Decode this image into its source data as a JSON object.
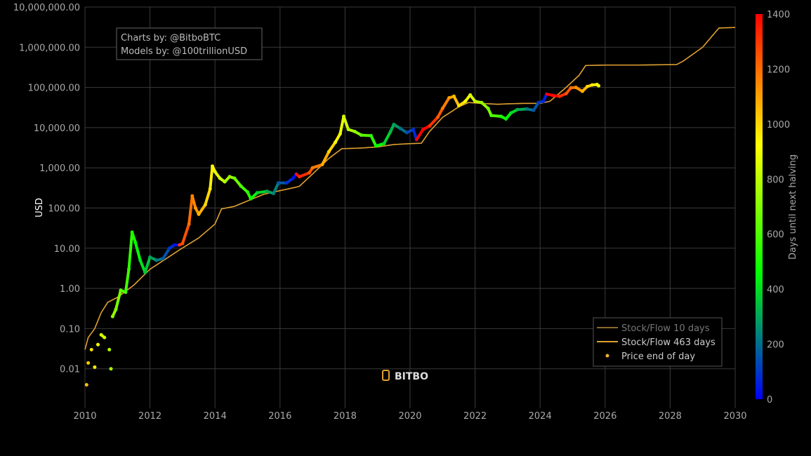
{
  "annotation": {
    "line1": "Charts by: @BitboBTC",
    "line2": "Models by: @100trillionUSD"
  },
  "watermark": "BITBO",
  "colors": {
    "sf10": "#8a6a2a",
    "sf463": "#e0a030",
    "price_legend": "#f0b030",
    "grid": "#3a3a3a",
    "text": "#aaaaaa"
  },
  "chart_data": {
    "type": "scatter",
    "title": "",
    "xlabel": "",
    "ylabel": "USD",
    "x_scale": "linear (year)",
    "y_scale": "log",
    "xlim": [
      2010,
      2030
    ],
    "ylim": [
      0.001,
      10000000
    ],
    "grid": true,
    "legend_placement": "bottom-right",
    "x_ticks": [
      "2010",
      "2012",
      "2014",
      "2016",
      "2018",
      "2020",
      "2022",
      "2024",
      "2026",
      "2028",
      "2030"
    ],
    "y_ticks": [
      "10,000,000.00",
      "1,000,000.00",
      "100,000.00",
      "10,000.00",
      "1,000.00",
      "100.00",
      "10.00",
      "1.00",
      "0.10",
      "0.01"
    ],
    "colorbar": {
      "label": "Days until next halving",
      "range": [
        0,
        1400
      ],
      "ticks": [
        "0",
        "200",
        "400",
        "600",
        "800",
        "1000",
        "1200",
        "1400"
      ],
      "colorscale": [
        "#0000ff",
        "#00ff00",
        "#ffff00",
        "#ff0000"
      ]
    },
    "legend": [
      "Stock/Flow 10 days",
      "Stock/Flow 463 days",
      "Price end of day"
    ],
    "series": [
      {
        "name": "Stock/Flow 10 days",
        "type": "line",
        "points": [
          [
            2010.0,
            0.03
          ],
          [
            2010.1,
            0.06
          ],
          [
            2010.3,
            0.1
          ],
          [
            2010.5,
            0.25
          ],
          [
            2010.7,
            0.45
          ],
          [
            2011.0,
            0.6
          ],
          [
            2011.5,
            1.2
          ],
          [
            2012.0,
            3
          ],
          [
            2012.5,
            5.5
          ],
          [
            2012.9,
            9
          ],
          [
            2013.5,
            18
          ],
          [
            2014.0,
            40
          ],
          [
            2014.2,
            95
          ],
          [
            2014.6,
            110
          ],
          [
            2015.0,
            150
          ],
          [
            2015.5,
            220
          ],
          [
            2016.0,
            270
          ],
          [
            2016.5,
            330
          ],
          [
            2016.6,
            350
          ],
          [
            2017.0,
            700
          ],
          [
            2017.5,
            1700
          ],
          [
            2017.9,
            3000
          ],
          [
            2018.5,
            3100
          ],
          [
            2019.0,
            3300
          ],
          [
            2019.5,
            3800
          ],
          [
            2020.0,
            4000
          ],
          [
            2020.35,
            4100
          ],
          [
            2020.6,
            8000
          ],
          [
            2021.0,
            18000
          ],
          [
            2021.5,
            33000
          ],
          [
            2021.8,
            42000
          ],
          [
            2022.2,
            40000
          ],
          [
            2022.7,
            38000
          ],
          [
            2023.0,
            39000
          ],
          [
            2023.5,
            40000
          ],
          [
            2024.0,
            40000
          ],
          [
            2024.3,
            45000
          ],
          [
            2024.8,
            100000
          ],
          [
            2025.2,
            200000
          ],
          [
            2025.4,
            350000
          ],
          [
            2026.0,
            360000
          ],
          [
            2027.0,
            360000
          ],
          [
            2028.2,
            370000
          ],
          [
            2028.4,
            450000
          ],
          [
            2029.0,
            1000000
          ],
          [
            2029.5,
            3000000
          ],
          [
            2030.0,
            3100000
          ]
        ]
      },
      {
        "name": "Stock/Flow 463 days",
        "type": "line",
        "points": [
          [
            2010.0,
            0.03
          ],
          [
            2010.1,
            0.06
          ],
          [
            2010.3,
            0.1
          ],
          [
            2010.5,
            0.25
          ],
          [
            2010.7,
            0.45
          ],
          [
            2011.0,
            0.6
          ],
          [
            2011.5,
            1.2
          ],
          [
            2012.0,
            3
          ],
          [
            2012.5,
            5.5
          ],
          [
            2012.9,
            9
          ],
          [
            2013.5,
            18
          ],
          [
            2014.0,
            40
          ],
          [
            2014.2,
            95
          ],
          [
            2014.6,
            110
          ],
          [
            2015.0,
            150
          ],
          [
            2015.5,
            220
          ],
          [
            2016.0,
            270
          ],
          [
            2016.5,
            330
          ],
          [
            2016.6,
            350
          ],
          [
            2017.0,
            700
          ],
          [
            2017.5,
            1700
          ],
          [
            2017.9,
            3000
          ],
          [
            2018.5,
            3100
          ],
          [
            2019.0,
            3300
          ],
          [
            2019.5,
            3800
          ],
          [
            2020.0,
            4000
          ],
          [
            2020.35,
            4100
          ],
          [
            2020.6,
            8000
          ],
          [
            2021.0,
            18000
          ],
          [
            2021.5,
            33000
          ],
          [
            2021.8,
            42000
          ],
          [
            2022.2,
            40000
          ],
          [
            2022.7,
            38000
          ],
          [
            2023.0,
            39000
          ],
          [
            2023.5,
            40000
          ],
          [
            2024.0,
            40000
          ],
          [
            2024.3,
            45000
          ],
          [
            2024.8,
            100000
          ],
          [
            2025.2,
            200000
          ],
          [
            2025.4,
            350000
          ],
          [
            2026.0,
            360000
          ],
          [
            2027.0,
            360000
          ],
          [
            2028.2,
            370000
          ],
          [
            2028.4,
            450000
          ],
          [
            2029.0,
            1000000
          ],
          [
            2029.5,
            3000000
          ],
          [
            2030.0,
            3100000
          ]
        ]
      },
      {
        "name": "Price end of day",
        "type": "scatter",
        "points": [
          [
            2010.05,
            0.004
          ],
          [
            2010.1,
            0.014
          ],
          [
            2010.2,
            0.03
          ],
          [
            2010.3,
            0.011
          ],
          [
            2010.4,
            0.04
          ],
          [
            2010.5,
            0.07
          ],
          [
            2010.6,
            0.06
          ],
          [
            2010.75,
            0.03
          ],
          [
            2010.8,
            0.01
          ],
          [
            2010.85,
            0.2
          ],
          [
            2010.95,
            0.3
          ],
          [
            2011.1,
            0.9
          ],
          [
            2011.25,
            0.8
          ],
          [
            2011.35,
            3
          ],
          [
            2011.45,
            25
          ],
          [
            2011.55,
            14
          ],
          [
            2011.7,
            5
          ],
          [
            2011.85,
            2.5
          ],
          [
            2012.0,
            6
          ],
          [
            2012.2,
            5
          ],
          [
            2012.4,
            5.5
          ],
          [
            2012.6,
            10
          ],
          [
            2012.75,
            12
          ],
          [
            2012.9,
            12
          ],
          [
            2013.0,
            13
          ],
          [
            2013.2,
            40
          ],
          [
            2013.3,
            200
          ],
          [
            2013.4,
            100
          ],
          [
            2013.5,
            70
          ],
          [
            2013.7,
            120
          ],
          [
            2013.85,
            300
          ],
          [
            2013.92,
            1100
          ],
          [
            2014.0,
            800
          ],
          [
            2014.15,
            550
          ],
          [
            2014.3,
            450
          ],
          [
            2014.45,
            600
          ],
          [
            2014.6,
            550
          ],
          [
            2014.8,
            350
          ],
          [
            2015.0,
            250
          ],
          [
            2015.1,
            170
          ],
          [
            2015.3,
            240
          ],
          [
            2015.6,
            260
          ],
          [
            2015.8,
            230
          ],
          [
            2015.95,
            420
          ],
          [
            2016.2,
            420
          ],
          [
            2016.4,
            550
          ],
          [
            2016.5,
            700
          ],
          [
            2016.6,
            600
          ],
          [
            2016.9,
            750
          ],
          [
            2017.0,
            1000
          ],
          [
            2017.3,
            1200
          ],
          [
            2017.5,
            2500
          ],
          [
            2017.7,
            4300
          ],
          [
            2017.85,
            7000
          ],
          [
            2017.96,
            19000
          ],
          [
            2018.1,
            9000
          ],
          [
            2018.3,
            8000
          ],
          [
            2018.5,
            6500
          ],
          [
            2018.8,
            6300
          ],
          [
            2018.95,
            3500
          ],
          [
            2019.2,
            4000
          ],
          [
            2019.4,
            8000
          ],
          [
            2019.5,
            12000
          ],
          [
            2019.7,
            9500
          ],
          [
            2019.9,
            7500
          ],
          [
            2020.1,
            9000
          ],
          [
            2020.2,
            5000
          ],
          [
            2020.4,
            9000
          ],
          [
            2020.6,
            11000
          ],
          [
            2020.85,
            18000
          ],
          [
            2021.0,
            30000
          ],
          [
            2021.2,
            55000
          ],
          [
            2021.35,
            60000
          ],
          [
            2021.5,
            35000
          ],
          [
            2021.7,
            45000
          ],
          [
            2021.85,
            65000
          ],
          [
            2022.0,
            45000
          ],
          [
            2022.2,
            42000
          ],
          [
            2022.4,
            30000
          ],
          [
            2022.5,
            20000
          ],
          [
            2022.8,
            19000
          ],
          [
            2022.95,
            16500
          ],
          [
            2023.1,
            23000
          ],
          [
            2023.3,
            28000
          ],
          [
            2023.6,
            29000
          ],
          [
            2023.8,
            27000
          ],
          [
            2023.95,
            42000
          ],
          [
            2024.1,
            45000
          ],
          [
            2024.2,
            68000
          ],
          [
            2024.4,
            63000
          ],
          [
            2024.6,
            60000
          ],
          [
            2024.8,
            70000
          ],
          [
            2024.95,
            98000
          ],
          [
            2025.1,
            100000
          ],
          [
            2025.3,
            80000
          ],
          [
            2025.45,
            105000
          ],
          [
            2025.6,
            115000
          ],
          [
            2025.75,
            118000
          ],
          [
            2025.8,
            110000
          ]
        ]
      }
    ]
  }
}
